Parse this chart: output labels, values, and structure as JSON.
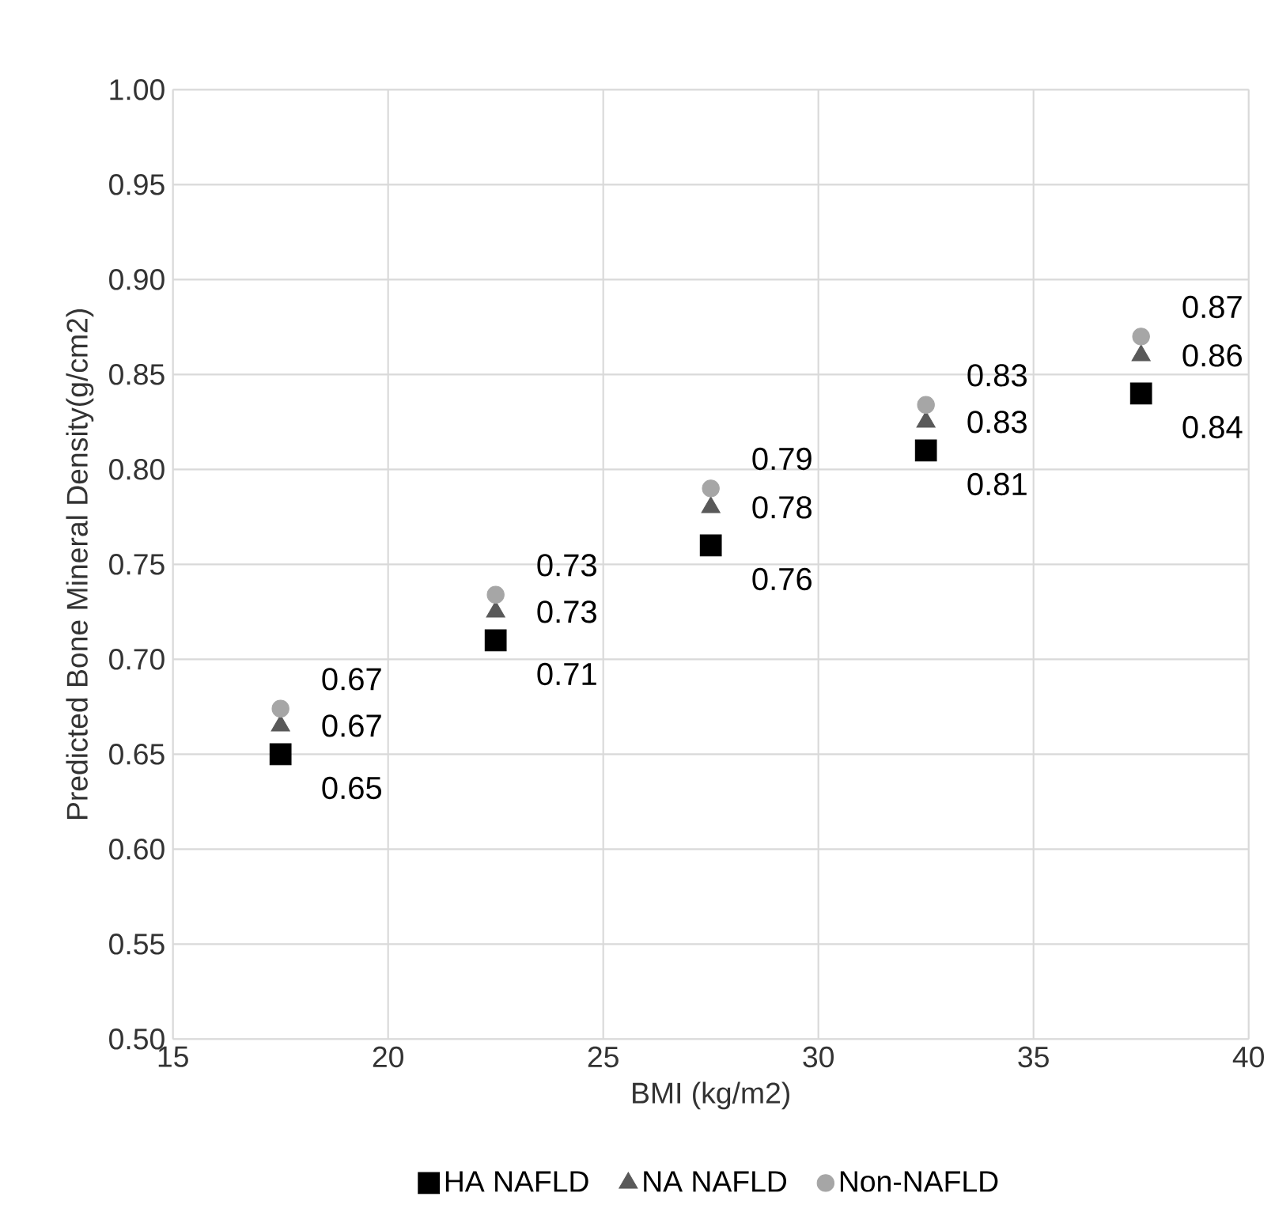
{
  "chart_data": {
    "type": "scatter",
    "xlabel": "BMI (kg/m2)",
    "ylabel": "Predicted Bone Mineral Density(g/cm2)",
    "xlim": [
      15,
      40
    ],
    "xticks": [
      15,
      20,
      25,
      30,
      35,
      40
    ],
    "ylim": [
      0.5,
      1.0
    ],
    "yticks": [
      {
        "value": 0.5,
        "label": "0.50"
      },
      {
        "value": 0.55,
        "label": "0.55"
      },
      {
        "value": 0.6,
        "label": "0.60"
      },
      {
        "value": 0.65,
        "label": "0.65"
      },
      {
        "value": 0.7,
        "label": "0.70"
      },
      {
        "value": 0.75,
        "label": "0.75"
      },
      {
        "value": 0.8,
        "label": "0.80"
      },
      {
        "value": 0.85,
        "label": "0.85"
      },
      {
        "value": 0.9,
        "label": "0.90"
      },
      {
        "value": 0.95,
        "label": "0.95"
      },
      {
        "value": 1.0,
        "label": "1.00"
      }
    ],
    "grid": true,
    "legend": "bottom",
    "series": [
      {
        "name": "HA NAFLD",
        "color": "#000000",
        "marker": "square",
        "x": [
          17.5,
          22.5,
          27.5,
          32.5,
          37.5
        ],
        "values": [
          0.65,
          0.71,
          0.76,
          0.81,
          0.84
        ],
        "value_labels": [
          "0.65",
          "0.71",
          "0.76",
          "0.81",
          "0.84"
        ]
      },
      {
        "name": "NA NAFLD",
        "color": "#595959",
        "marker": "triangle",
        "x": [
          17.5,
          22.5,
          27.5,
          32.5,
          37.5
        ],
        "values": [
          0.665,
          0.725,
          0.78,
          0.825,
          0.86
        ],
        "value_labels": [
          "0.67",
          "0.73",
          "0.78",
          "0.83",
          "0.86"
        ]
      },
      {
        "name": "Non-NAFLD",
        "color": "#a6a6a6",
        "marker": "circle",
        "x": [
          17.5,
          22.5,
          27.5,
          32.5,
          37.5
        ],
        "values": [
          0.674,
          0.734,
          0.79,
          0.834,
          0.87
        ],
        "value_labels": [
          "0.67",
          "0.73",
          "0.79",
          "0.83",
          "0.87"
        ]
      }
    ]
  }
}
